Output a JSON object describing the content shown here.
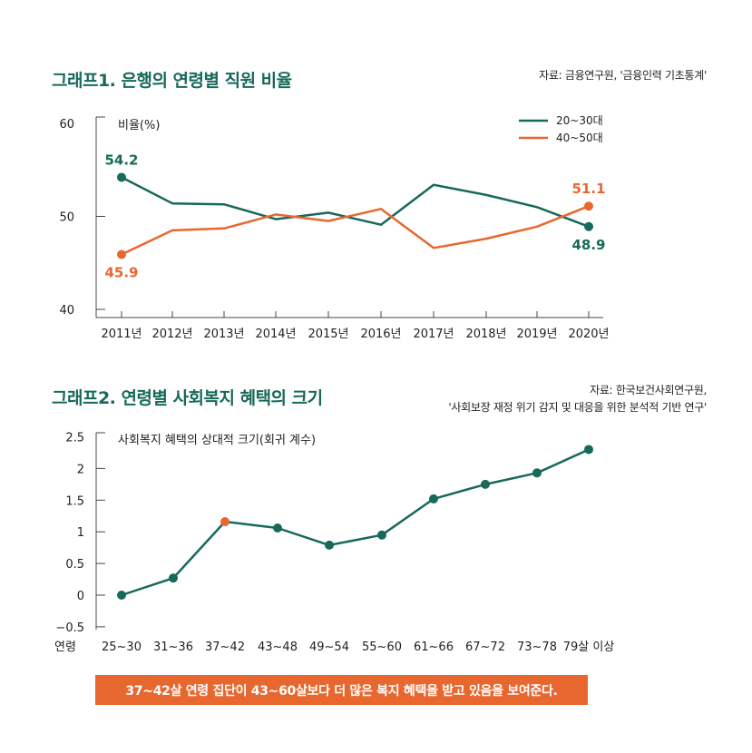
{
  "chart_data": [
    {
      "type": "line",
      "title": "그래프1. 은행의 연령별 직원 비율",
      "source": "자료: 금융연구원, '금융인력 기초통계'",
      "ylabel": "비율(%)",
      "ylim": [
        40,
        60
      ],
      "yticks": [
        "60",
        "50",
        "40"
      ],
      "categories": [
        "2011년",
        "2012년",
        "2013년",
        "2014년",
        "2015년",
        "2016년",
        "2017년",
        "2018년",
        "2019년",
        "2020년"
      ],
      "legend_position": "top-right",
      "series": [
        {
          "name": "20~30대",
          "color": "#17695a",
          "values": [
            54.2,
            51.4,
            51.3,
            49.7,
            50.4,
            49.1,
            53.4,
            52.3,
            51.0,
            48.9
          ]
        },
        {
          "name": "40~50대",
          "color": "#e8672f",
          "values": [
            45.9,
            48.5,
            48.7,
            50.2,
            49.5,
            50.8,
            46.6,
            47.6,
            48.9,
            51.1
          ]
        }
      ],
      "annotations": [
        "54.2",
        "45.9",
        "51.1",
        "48.9"
      ]
    },
    {
      "type": "line",
      "title": "그래프2. 연령별 사회복지 혜택의 크기",
      "source_lines": [
        "자료: 한국보건사회연구원,",
        "'사회보장 재정 위기 감지 및 대응을 위한 분석적 기반 연구'"
      ],
      "ylabel": "사회복지 혜택의 상대적 크기(회귀 계수)",
      "xlabel": "연령",
      "ylim": [
        -0.5,
        2.5
      ],
      "yticks": [
        "2.5",
        "2",
        "1.5",
        "1",
        "0.5",
        "0",
        "−0.5"
      ],
      "categories": [
        "25~30",
        "31~36",
        "37~42",
        "43~48",
        "49~54",
        "55~60",
        "61~66",
        "67~72",
        "73~78",
        "79살 이상"
      ],
      "series": [
        {
          "color": "#17695a",
          "highlight_color": "#e8672f",
          "highlight_index": 2,
          "values": [
            0.0,
            0.27,
            1.16,
            1.06,
            0.79,
            0.95,
            1.52,
            1.75,
            1.93,
            2.3
          ]
        }
      ]
    }
  ],
  "banner": "37~42살 연령 집단이 43~60살보다 더 많은 복지 혜택을 받고 있음을 보여준다."
}
